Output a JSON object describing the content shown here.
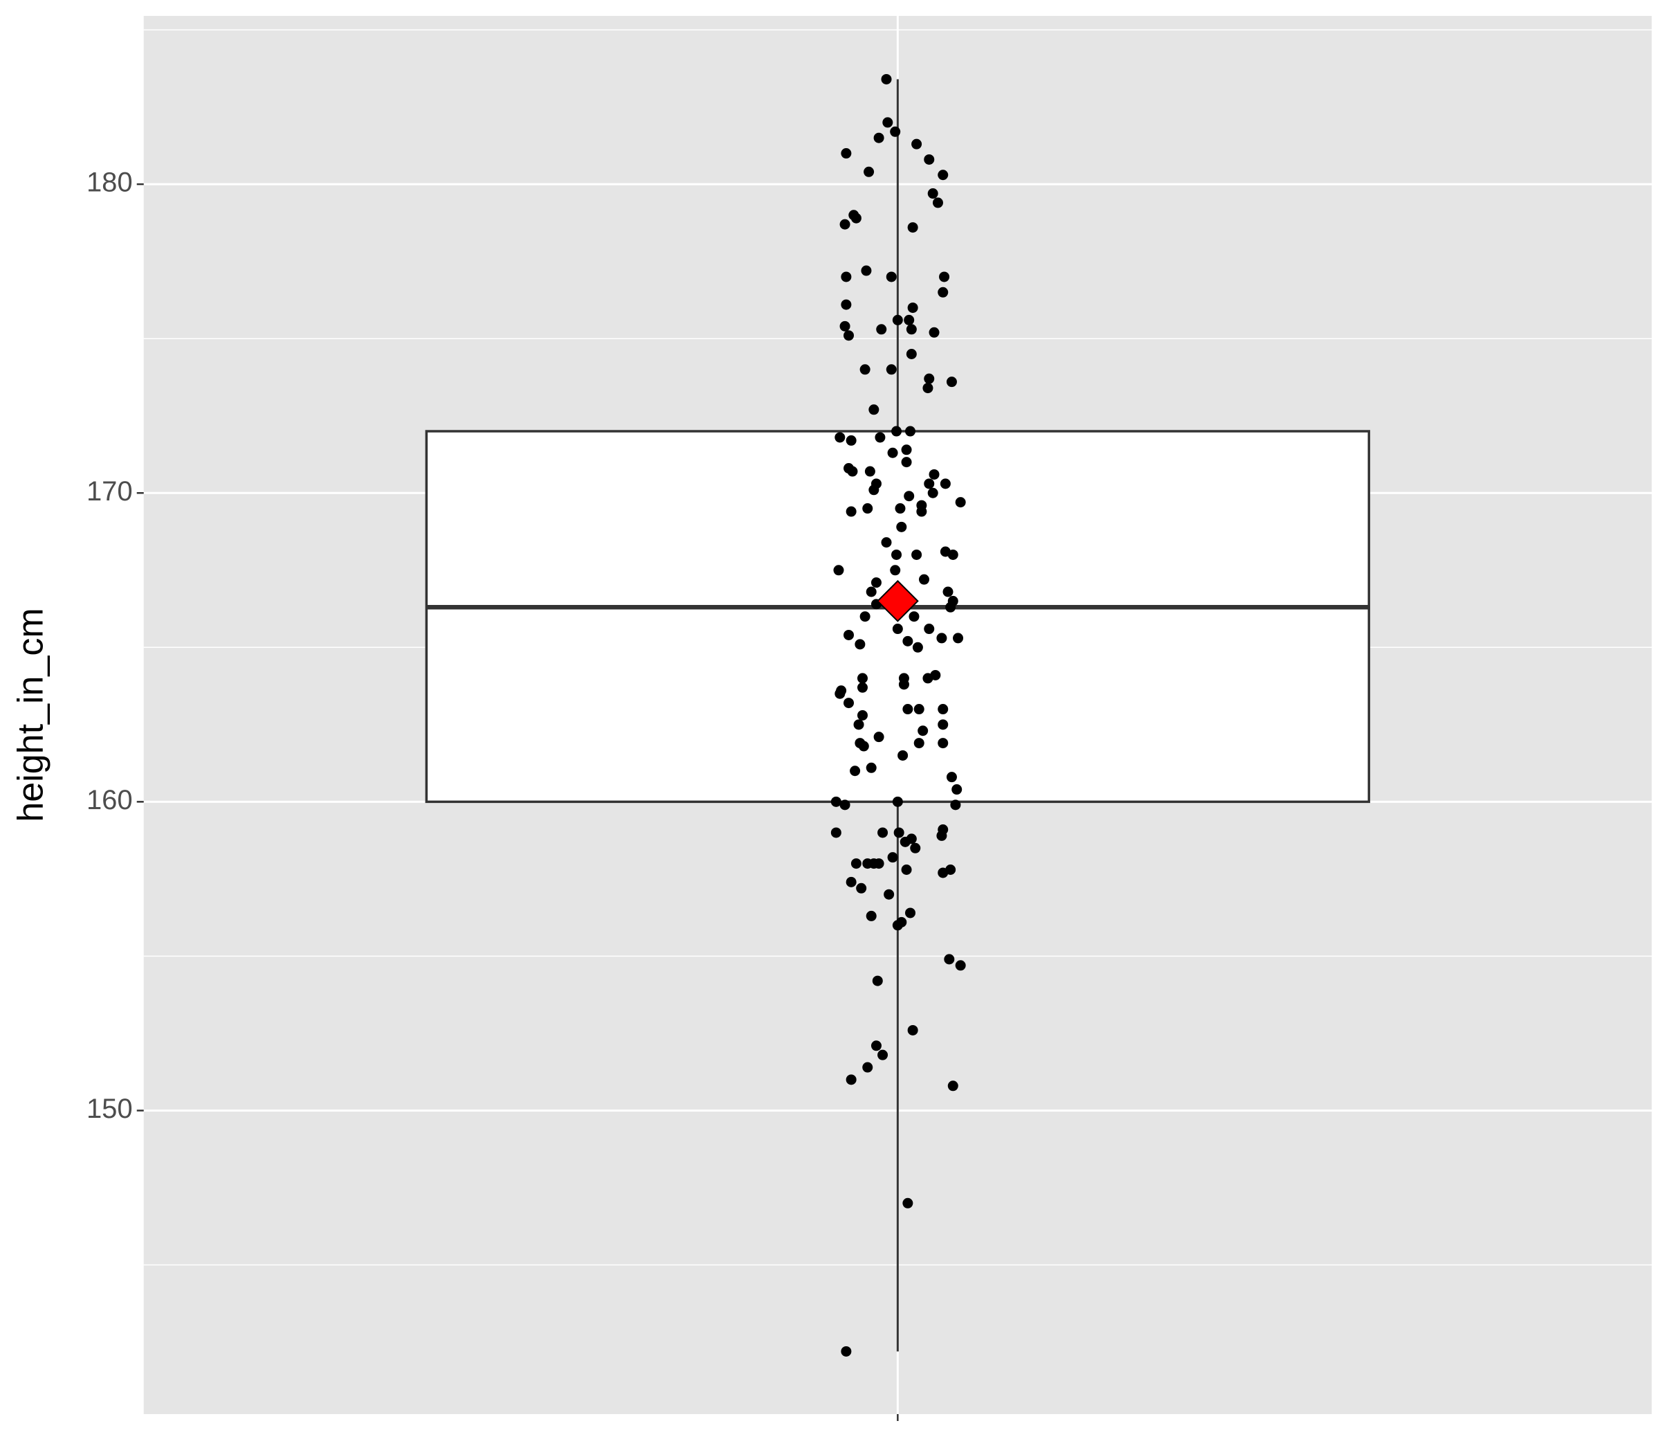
{
  "chart_data": {
    "type": "box",
    "y_label": "height_in_cm",
    "ylim": [
      140.17,
      185.45
    ],
    "yticks": [
      150,
      160,
      170,
      180
    ],
    "minor_yticks": [
      145,
      155,
      165,
      175,
      185
    ],
    "xlim": [
      0.4,
      1.6
    ],
    "xticks": [
      1
    ],
    "grid": true,
    "box": {
      "x": 1,
      "width": 0.75,
      "q1": 160,
      "median": 166.3,
      "q3": 172,
      "whisker_low": 142.2,
      "whisker_high": 183.4,
      "mean": 166.5,
      "mean_color": "#ff0000",
      "fill": "#ffffff",
      "color": "#333333"
    },
    "points": {
      "color": "#000000",
      "x": [
        0.991,
        0.992,
        0.998,
        0.985,
        1.015,
        0.959,
        1.025,
        0.977,
        1.036,
        1.028,
        1.032,
        0.965,
        0.967,
        0.958,
        1.012,
        0.975,
        0.995,
        0.959,
        1.037,
        1.036,
        0.959,
        1.012,
        1.0,
        1.009,
        0.958,
        0.987,
        1.011,
        1.029,
        0.961,
        1.011,
        0.974,
        0.995,
        1.025,
        1.043,
        1.024,
        0.981,
        0.999,
        1.01,
        0.954,
        0.986,
        0.963,
        1.007,
        0.996,
        1.007,
        0.961,
        0.964,
        0.978,
        1.029,
        0.983,
        1.025,
        1.038,
        0.981,
        1.028,
        1.009,
        1.05,
        1.019,
        1.019,
        1.002,
        0.976,
        0.963,
        1.003,
        0.991,
        1.038,
        1.015,
        1.044,
        0.999,
        0.953,
        0.998,
        1.021,
        0.983,
        0.979,
        1.04,
        1.044,
        0.983,
        1.042,
        0.974,
        1.013,
        1.0,
        1.025,
        0.961,
        1.035,
        1.048,
        1.008,
        0.97,
        1.016,
        1.03,
        1.024,
        0.972,
        1.005,
        1.005,
        0.972,
        0.955,
        0.954,
        0.961,
        1.008,
        1.017,
        1.036,
        0.972,
        1.036,
        0.969,
        1.02,
        0.985,
        0.97,
        1.036,
        1.017,
        0.973,
        1.004,
        0.979,
        0.966,
        1.043,
        1.047,
        0.951,
        1.0,
        0.958,
        1.046,
        1.036,
        0.951,
        0.988,
        1.001,
        1.035,
        1.011,
        1.006,
        1.014,
        0.996,
        0.976,
        0.967,
        0.981,
        0.985,
        1.007,
        1.042,
        1.036,
        0.963,
        0.971,
        0.993,
        1.01,
        0.979,
        1.003,
        1.0,
        1.041,
        1.05,
        0.984,
        1.012,
        0.983,
        0.988,
        0.976,
        0.963,
        1.044,
        1.008,
        0.959
      ],
      "y": [
        183.4,
        182.0,
        181.7,
        181.5,
        181.3,
        181.0,
        180.8,
        180.4,
        180.3,
        179.7,
        179.4,
        179.0,
        178.9,
        178.7,
        178.6,
        177.2,
        177.0,
        177.0,
        177.0,
        176.5,
        176.1,
        176.0,
        175.6,
        175.6,
        175.4,
        175.3,
        175.3,
        175.2,
        175.1,
        174.5,
        174.0,
        174.0,
        173.7,
        173.6,
        173.4,
        172.7,
        172.0,
        172.0,
        171.8,
        171.8,
        171.7,
        171.4,
        171.3,
        171.0,
        170.8,
        170.7,
        170.7,
        170.6,
        170.3,
        170.3,
        170.3,
        170.1,
        170.0,
        169.9,
        169.7,
        169.6,
        169.4,
        169.5,
        169.5,
        169.4,
        168.9,
        168.4,
        168.1,
        168.0,
        168.0,
        168.0,
        167.5,
        167.5,
        167.2,
        167.1,
        166.8,
        166.8,
        166.5,
        166.4,
        166.3,
        166.0,
        166.0,
        165.6,
        165.6,
        165.4,
        165.3,
        165.3,
        165.2,
        165.1,
        165.0,
        164.1,
        164.0,
        164.0,
        164.0,
        163.8,
        163.7,
        163.6,
        163.5,
        163.2,
        163.0,
        163.0,
        163.0,
        162.8,
        162.5,
        162.5,
        162.3,
        162.1,
        161.9,
        161.9,
        161.9,
        161.8,
        161.5,
        161.1,
        161.0,
        160.8,
        160.4,
        160.0,
        160.0,
        159.9,
        159.9,
        159.1,
        159.0,
        159.0,
        159.0,
        158.9,
        158.8,
        158.7,
        158.5,
        158.2,
        158.0,
        158.0,
        158.0,
        158.0,
        157.8,
        157.8,
        157.7,
        157.4,
        157.2,
        157.0,
        156.4,
        156.3,
        156.1,
        156.0,
        154.9,
        154.7,
        154.2,
        152.6,
        152.1,
        151.8,
        151.4,
        151.0,
        150.8,
        147.0,
        142.2
      ]
    }
  }
}
